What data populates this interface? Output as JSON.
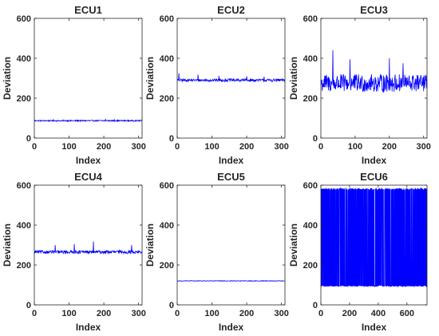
{
  "chart_data": [
    {
      "type": "line",
      "title": "ECU1",
      "xlabel": "Index",
      "ylabel": "Deviation",
      "xlim": [
        0,
        310
      ],
      "ylim": [
        0,
        600
      ],
      "xticks": [
        0,
        100,
        200,
        300
      ],
      "yticks": [
        0,
        200,
        400,
        600
      ],
      "line_color": "#0000ff",
      "series_model": {
        "mean": 87,
        "noise": 3,
        "spikes": [
          [
            55,
            93
          ],
          [
            205,
            95
          ],
          [
            230,
            92
          ]
        ]
      }
    },
    {
      "type": "line",
      "title": "ECU2",
      "xlabel": "Index",
      "ylabel": "Deviation",
      "xlim": [
        0,
        310
      ],
      "ylim": [
        0,
        600
      ],
      "xticks": [
        0,
        100,
        200,
        300
      ],
      "yticks": [
        0,
        200,
        400,
        600
      ],
      "line_color": "#0000ff",
      "series_model": {
        "mean": 290,
        "noise": 7,
        "spikes": [
          [
            5,
            325
          ],
          [
            60,
            318
          ],
          [
            120,
            312
          ],
          [
            200,
            310
          ],
          [
            250,
            308
          ]
        ]
      }
    },
    {
      "type": "line",
      "title": "ECU3",
      "xlabel": "Index",
      "ylabel": "Deviation",
      "xlim": [
        0,
        310
      ],
      "ylim": [
        0,
        600
      ],
      "xticks": [
        0,
        100,
        200,
        300
      ],
      "yticks": [
        0,
        200,
        400,
        600
      ],
      "line_color": "#0000ff",
      "series_model": {
        "mean": 275,
        "noise": 45,
        "spikes": [
          [
            35,
            440
          ],
          [
            85,
            395
          ],
          [
            200,
            400
          ],
          [
            240,
            375
          ]
        ]
      }
    },
    {
      "type": "line",
      "title": "ECU4",
      "xlabel": "Index",
      "ylabel": "Deviation",
      "xlim": [
        0,
        310
      ],
      "ylim": [
        0,
        600
      ],
      "xticks": [
        0,
        100,
        200,
        300
      ],
      "yticks": [
        0,
        200,
        400,
        600
      ],
      "line_color": "#0000ff",
      "series_model": {
        "mean": 265,
        "noise": 8,
        "spikes": [
          [
            60,
            300
          ],
          [
            115,
            305
          ],
          [
            170,
            318
          ],
          [
            280,
            300
          ]
        ]
      }
    },
    {
      "type": "line",
      "title": "ECU5",
      "xlabel": "Index",
      "ylabel": "Deviation",
      "xlim": [
        0,
        310
      ],
      "ylim": [
        0,
        600
      ],
      "xticks": [
        0,
        100,
        200,
        300
      ],
      "yticks": [
        0,
        200,
        400,
        600
      ],
      "line_color": "#0000ff",
      "series_model": {
        "mean": 120,
        "noise": 1.5,
        "spikes": []
      }
    },
    {
      "type": "line",
      "title": "ECU6",
      "xlabel": "Index",
      "ylabel": "Deviation",
      "xlim": [
        0,
        740
      ],
      "ylim": [
        0,
        600
      ],
      "xticks": [
        0,
        200,
        400,
        600
      ],
      "yticks": [
        0,
        200,
        400,
        600
      ],
      "line_color": "#0000ff",
      "series_model": {
        "high": 580,
        "low": 95,
        "switching": true
      }
    }
  ]
}
